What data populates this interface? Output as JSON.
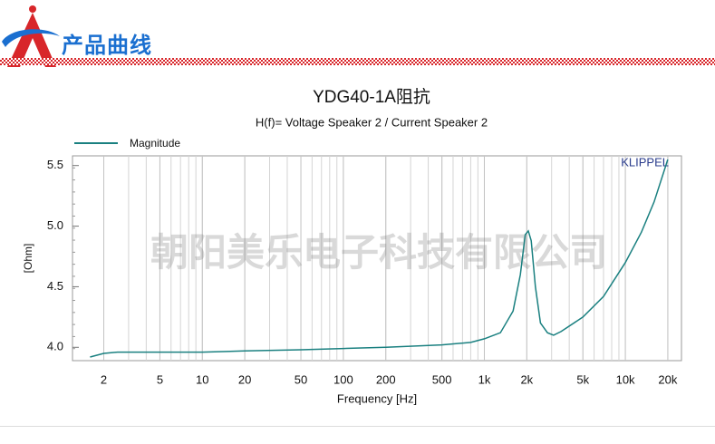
{
  "header": {
    "title": "产品曲线"
  },
  "chart_data": {
    "type": "line",
    "title": "YDG40-1A阻抗",
    "subtitle": "H(f)= Voltage Speaker 2 / Current Speaker 2",
    "x_label": "Frequency [Hz]",
    "y_label": "[Ohm]",
    "annotations": [
      "KLIPPEL",
      "朝阳美乐电子科技有限公司"
    ],
    "x": [
      1.6,
      2,
      2.5,
      5,
      10,
      20,
      50,
      100,
      200,
      500,
      800,
      1000,
      1300,
      1600,
      1800,
      1950,
      2050,
      2150,
      2300,
      2500,
      2800,
      3100,
      3500,
      5000,
      7000,
      10000,
      13000,
      16000,
      20000
    ],
    "series": [
      {
        "name": "Magnitude",
        "color": "#1a8080",
        "values": [
          3.92,
          3.95,
          3.96,
          3.96,
          3.96,
          3.97,
          3.98,
          3.99,
          4.0,
          4.02,
          4.04,
          4.07,
          4.12,
          4.3,
          4.6,
          4.93,
          4.96,
          4.88,
          4.5,
          4.2,
          4.12,
          4.1,
          4.13,
          4.25,
          4.42,
          4.7,
          4.95,
          5.2,
          5.55
        ]
      }
    ],
    "xlim": [
      1.2,
      25000
    ],
    "ylim": [
      3.89,
      5.58
    ],
    "xlog": true,
    "grid": true,
    "xticks": [
      2,
      5,
      10,
      20,
      50,
      100,
      200,
      500,
      {
        "value": 1000,
        "label": "1k"
      },
      {
        "value": 2000,
        "label": "2k"
      },
      {
        "value": 5000,
        "label": "5k"
      },
      {
        "value": 10000,
        "label": "10k"
      },
      {
        "value": 20000,
        "label": "20k"
      }
    ],
    "yticks": [
      {
        "value": 4,
        "label": "4.0"
      },
      4.5,
      {
        "value": 5,
        "label": "5.0"
      },
      5.5
    ]
  }
}
